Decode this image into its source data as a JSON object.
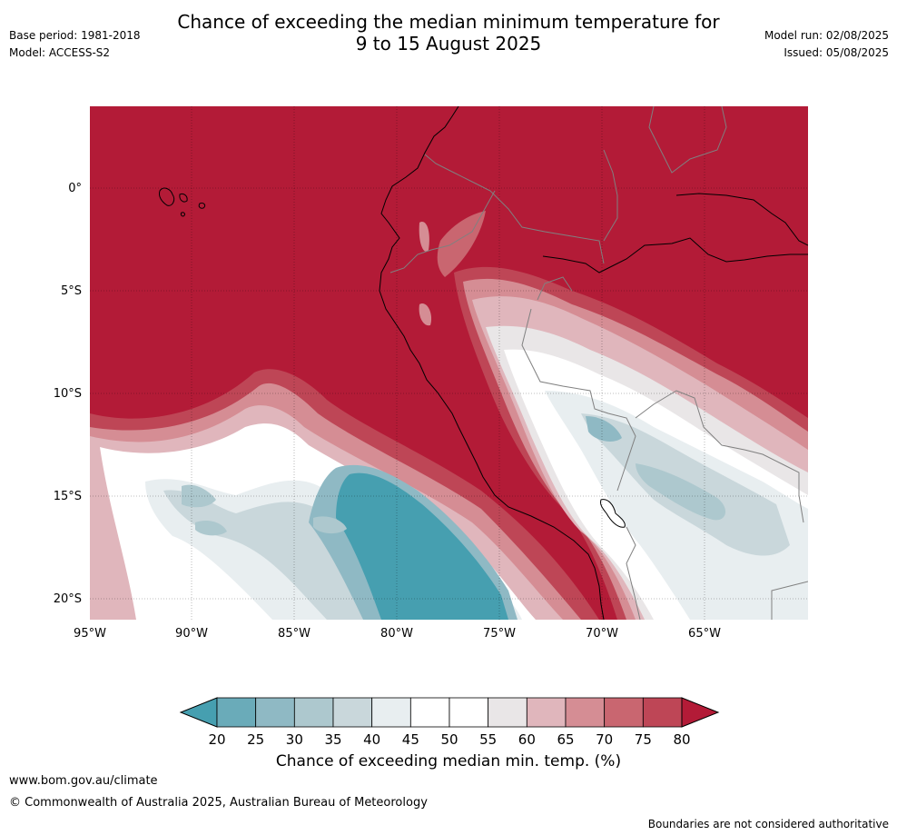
{
  "title": {
    "line1": "Chance of exceeding the median minimum temperature for",
    "line2": "9 to 15 August 2025"
  },
  "meta_left": {
    "base_period": "Base period: 1981-2018",
    "model": "Model: ACCESS-S2"
  },
  "meta_right": {
    "model_run": "Model run: 02/08/2025",
    "issued": "Issued: 05/08/2025"
  },
  "map": {
    "lon_labels": [
      "95°W",
      "90°W",
      "85°W",
      "80°W",
      "75°W",
      "70°W",
      "65°W"
    ],
    "lat_labels": [
      "0°",
      "5°S",
      "10°S",
      "15°S",
      "20°S"
    ],
    "lon_range": [
      -95,
      -60
    ],
    "lat_range": [
      -21,
      4
    ]
  },
  "colorbar": {
    "label": "Chance of exceeding median min. temp. (%)",
    "ticks": [
      "20",
      "25",
      "30",
      "35",
      "40",
      "45",
      "50",
      "55",
      "60",
      "65",
      "70",
      "75",
      "80"
    ],
    "colors": [
      "#469fb0",
      "#6aabb9",
      "#8fb9c4",
      "#adc8ce",
      "#c9d7db",
      "#e8eef0",
      "#ffffff",
      "#ffffff",
      "#e9e6e7",
      "#e0b6bc",
      "#d58d94",
      "#c96670",
      "#be4656",
      "#b31b37"
    ],
    "under_color": "#469fb0",
    "over_color": "#b31b37"
  },
  "footer": {
    "url": "www.bom.gov.au/climate",
    "copyright": "© Commonwealth of Australia 2025, Australian Bureau of Meteorology",
    "disclaimer": "Boundaries are not considered authoritative"
  }
}
